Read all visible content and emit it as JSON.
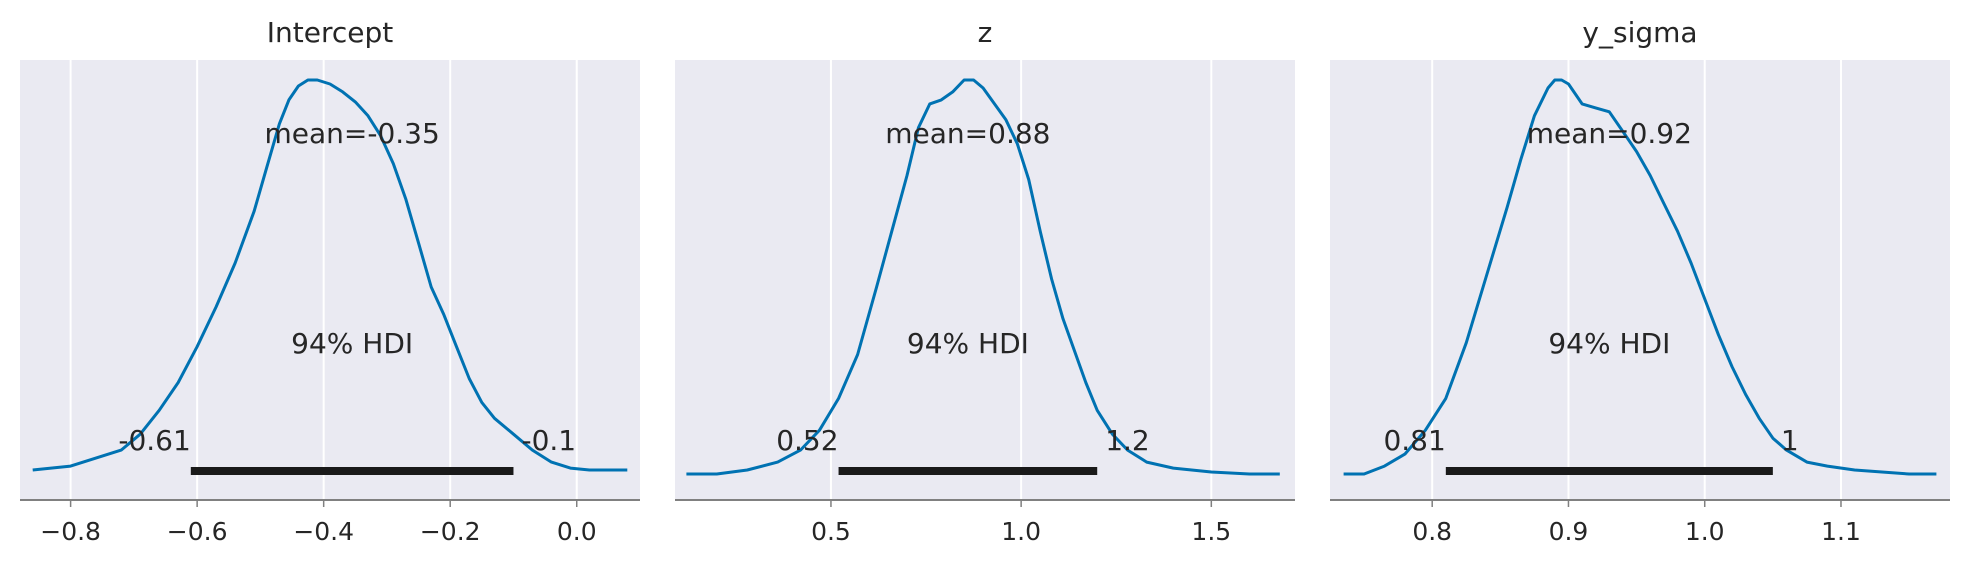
{
  "chart_data": [
    {
      "type": "area",
      "title": "Intercept",
      "xlim": [
        -0.88,
        0.1
      ],
      "xticks": [
        -0.8,
        -0.6,
        -0.4,
        -0.2,
        0.0
      ],
      "xtick_labels": [
        "−0.8",
        "−0.6",
        "−0.4",
        "−0.2",
        "0.0"
      ],
      "mean_label": "mean=-0.35",
      "hdi_label": "94% HDI",
      "hdi": [
        -0.61,
        -0.1
      ],
      "hdi_low_label": "-0.61",
      "hdi_high_label": "-0.1",
      "series": [
        {
          "x": [
            -0.86,
            -0.8,
            -0.76,
            -0.72,
            -0.69,
            -0.66,
            -0.63,
            -0.6,
            -0.57,
            -0.54,
            -0.51,
            -0.49,
            -0.47,
            -0.455,
            -0.44,
            -0.425,
            -0.41,
            -0.39,
            -0.37,
            -0.35,
            -0.33,
            -0.31,
            -0.29,
            -0.27,
            -0.25,
            -0.23,
            -0.21,
            -0.19,
            -0.17,
            -0.15,
            -0.13,
            -0.1,
            -0.07,
            -0.04,
            -0.01,
            0.02,
            0.05,
            0.08
          ],
          "y": [
            0.02,
            0.03,
            0.05,
            0.07,
            0.11,
            0.17,
            0.24,
            0.33,
            0.43,
            0.54,
            0.67,
            0.78,
            0.89,
            0.95,
            0.985,
            1.0,
            1.0,
            0.99,
            0.97,
            0.945,
            0.91,
            0.86,
            0.79,
            0.7,
            0.59,
            0.48,
            0.41,
            0.33,
            0.25,
            0.19,
            0.15,
            0.11,
            0.07,
            0.04,
            0.025,
            0.02,
            0.02,
            0.02
          ]
        }
      ]
    },
    {
      "type": "area",
      "title": "z",
      "xlim": [
        0.09,
        1.72
      ],
      "xticks": [
        0.5,
        1.0,
        1.5
      ],
      "xtick_labels": [
        "0.5",
        "1.0",
        "1.5"
      ],
      "mean_label": "mean=0.88",
      "hdi_label": "94% HDI",
      "hdi": [
        0.52,
        1.2
      ],
      "hdi_low_label": "0.52",
      "hdi_high_label": "1.2",
      "series": [
        {
          "x": [
            0.12,
            0.2,
            0.28,
            0.36,
            0.42,
            0.47,
            0.52,
            0.57,
            0.62,
            0.66,
            0.7,
            0.73,
            0.76,
            0.79,
            0.82,
            0.85,
            0.875,
            0.9,
            0.93,
            0.96,
            0.99,
            1.02,
            1.05,
            1.08,
            1.11,
            1.14,
            1.17,
            1.2,
            1.24,
            1.28,
            1.33,
            1.4,
            1.5,
            1.6,
            1.68
          ],
          "y": [
            0.01,
            0.01,
            0.02,
            0.04,
            0.07,
            0.12,
            0.2,
            0.31,
            0.48,
            0.62,
            0.76,
            0.88,
            0.94,
            0.95,
            0.97,
            1.0,
            1.0,
            0.98,
            0.94,
            0.9,
            0.84,
            0.75,
            0.62,
            0.5,
            0.4,
            0.32,
            0.24,
            0.17,
            0.11,
            0.07,
            0.04,
            0.025,
            0.015,
            0.01,
            0.01
          ]
        }
      ]
    },
    {
      "type": "area",
      "title": "y_sigma",
      "xlim": [
        0.725,
        1.18
      ],
      "xticks": [
        0.8,
        0.9,
        1.0,
        1.1
      ],
      "xtick_labels": [
        "0.8",
        "0.9",
        "1.0",
        "1.1"
      ],
      "mean_label": "mean=0.92",
      "hdi_label": "94% HDI",
      "hdi": [
        0.81,
        1.05
      ],
      "hdi_low_label": "0.81",
      "hdi_high_label": "1",
      "series": [
        {
          "x": [
            0.735,
            0.75,
            0.765,
            0.78,
            0.795,
            0.81,
            0.825,
            0.84,
            0.855,
            0.865,
            0.875,
            0.885,
            0.89,
            0.895,
            0.9,
            0.91,
            0.92,
            0.93,
            0.94,
            0.95,
            0.96,
            0.97,
            0.98,
            0.99,
            1.0,
            1.01,
            1.02,
            1.03,
            1.04,
            1.05,
            1.06,
            1.075,
            1.09,
            1.11,
            1.13,
            1.15,
            1.17
          ],
          "y": [
            0.01,
            0.01,
            0.03,
            0.06,
            0.12,
            0.2,
            0.34,
            0.51,
            0.68,
            0.8,
            0.91,
            0.98,
            1.0,
            1.0,
            0.99,
            0.94,
            0.93,
            0.92,
            0.87,
            0.82,
            0.76,
            0.69,
            0.62,
            0.54,
            0.45,
            0.36,
            0.28,
            0.21,
            0.15,
            0.1,
            0.07,
            0.04,
            0.03,
            0.02,
            0.015,
            0.01,
            0.01
          ]
        }
      ]
    }
  ],
  "colors": {
    "plot_background": "#eaeaf2",
    "grid": "#ffffff",
    "density_line": "#0072b2",
    "hdi_bar": "#1a1a1a",
    "axis_spine": "#808080",
    "text": "#262626"
  }
}
